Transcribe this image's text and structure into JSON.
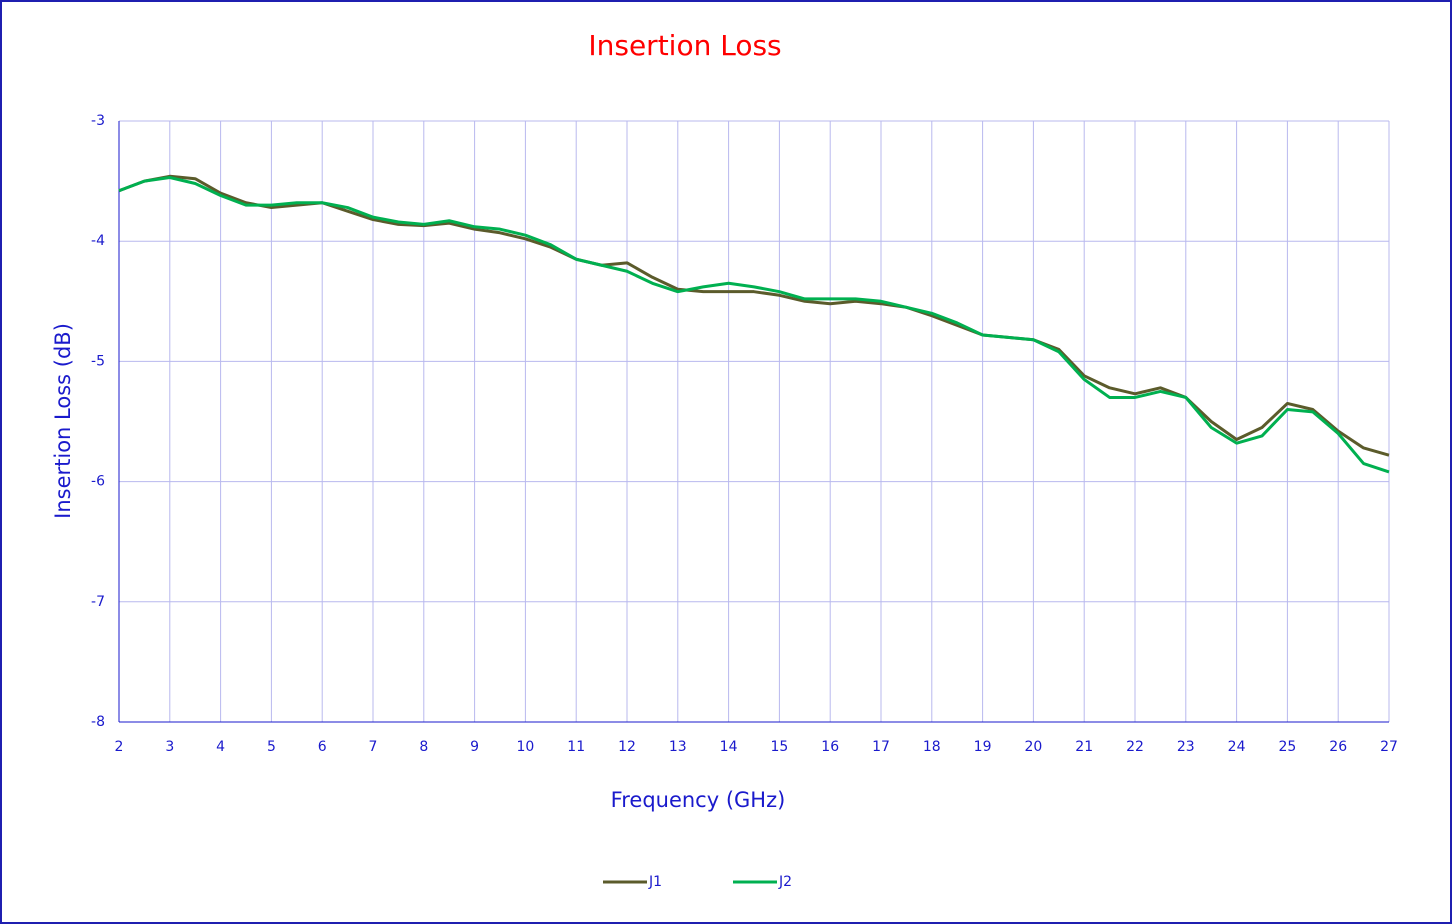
{
  "chart_data": {
    "type": "line",
    "title": "Insertion Loss",
    "x_label": "Frequency (GHz)",
    "y_label": "Insertion Loss (dB)",
    "x": [
      2,
      2.5,
      3,
      3.5,
      4,
      4.5,
      5,
      5.5,
      6,
      6.5,
      7,
      7.5,
      8,
      8.5,
      9,
      9.5,
      10,
      10.5,
      11,
      11.5,
      12,
      12.5,
      13,
      13.5,
      14,
      14.5,
      15,
      15.5,
      16,
      16.5,
      17,
      17.5,
      18,
      18.5,
      19,
      19.5,
      20,
      20.5,
      21,
      21.5,
      22,
      22.5,
      23,
      23.5,
      24,
      24.5,
      25,
      25.5,
      26,
      26.5,
      27
    ],
    "series": [
      {
        "name": "J1",
        "color": "#5b5b2b",
        "values": [
          -3.58,
          -3.5,
          -3.46,
          -3.48,
          -3.6,
          -3.68,
          -3.72,
          -3.7,
          -3.68,
          -3.75,
          -3.82,
          -3.86,
          -3.87,
          -3.85,
          -3.9,
          -3.93,
          -3.98,
          -4.05,
          -4.15,
          -4.2,
          -4.18,
          -4.3,
          -4.4,
          -4.42,
          -4.42,
          -4.42,
          -4.45,
          -4.5,
          -4.52,
          -4.5,
          -4.52,
          -4.55,
          -4.62,
          -4.7,
          -4.78,
          -4.8,
          -4.82,
          -4.9,
          -5.12,
          -5.22,
          -5.27,
          -5.22,
          -5.3,
          -5.5,
          -5.65,
          -5.55,
          -5.35,
          -5.4,
          -5.58,
          -5.72,
          -5.78
        ]
      },
      {
        "name": "J2",
        "color": "#00b050",
        "values": [
          -3.58,
          -3.5,
          -3.47,
          -3.52,
          -3.62,
          -3.7,
          -3.7,
          -3.68,
          -3.68,
          -3.72,
          -3.8,
          -3.84,
          -3.86,
          -3.83,
          -3.88,
          -3.9,
          -3.95,
          -4.03,
          -4.15,
          -4.2,
          -4.25,
          -4.35,
          -4.42,
          -4.38,
          -4.35,
          -4.38,
          -4.42,
          -4.48,
          -4.48,
          -4.48,
          -4.5,
          -4.55,
          -4.6,
          -4.68,
          -4.78,
          -4.8,
          -4.82,
          -4.92,
          -5.15,
          -5.3,
          -5.3,
          -5.25,
          -5.3,
          -5.55,
          -5.68,
          -5.62,
          -5.4,
          -5.42,
          -5.6,
          -5.85,
          -5.92
        ]
      }
    ],
    "xlim": [
      2,
      27
    ],
    "xticks": [
      2,
      3,
      4,
      5,
      6,
      7,
      8,
      9,
      10,
      11,
      12,
      13,
      14,
      15,
      16,
      17,
      18,
      19,
      20,
      21,
      22,
      23,
      24,
      25,
      26,
      27
    ],
    "ylim": [
      -8,
      -3
    ],
    "yticks": [
      -8,
      -7,
      -6,
      -5,
      -4,
      -3
    ],
    "grid": true,
    "legend": "bottom"
  }
}
